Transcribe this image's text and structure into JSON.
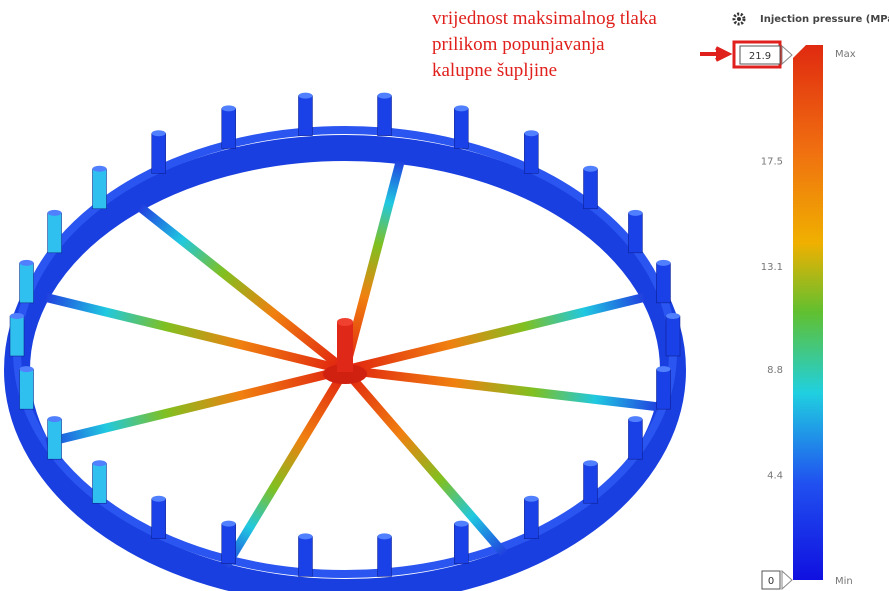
{
  "annotation": {
    "lines": [
      "vrijednost maksimalnog tlaka",
      "prilikom popunjavanja",
      "kalupne šupljine"
    ]
  },
  "legend": {
    "title": "Injection pressure (MPa)",
    "max_value": 21.9,
    "min_value": 0,
    "max_label": "Max",
    "min_label": "Min",
    "ticks": [
      17.5,
      13.1,
      8.8,
      4.4
    ]
  }
}
